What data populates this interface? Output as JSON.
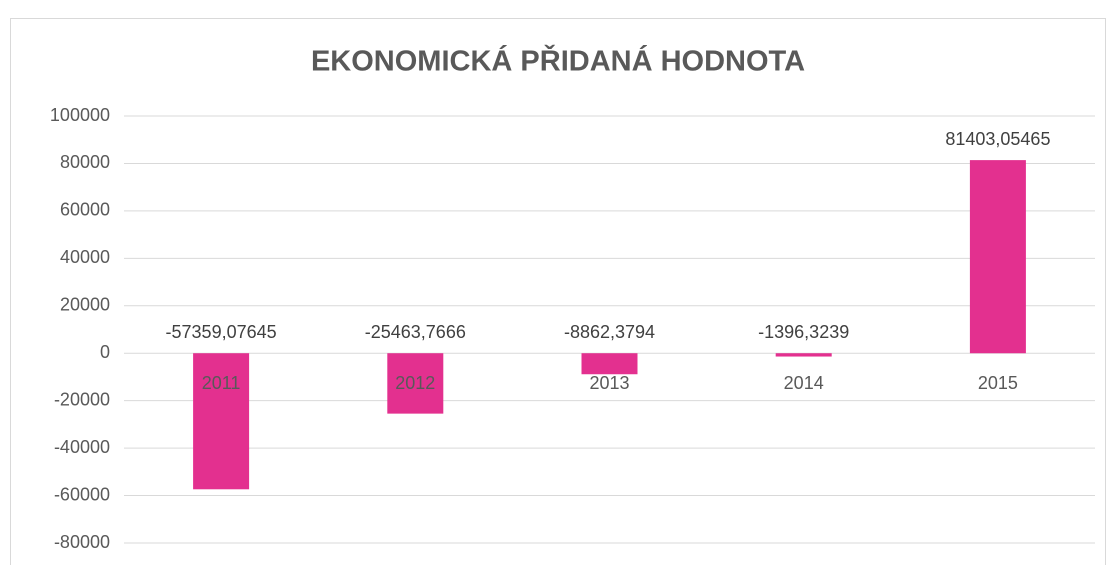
{
  "chart_data": {
    "type": "bar",
    "title": "EKONOMICKÁ PŘIDANÁ HODNOTA",
    "categories": [
      "2011",
      "2012",
      "2013",
      "2014",
      "2015"
    ],
    "values": [
      -57359.07645,
      -25463.7666,
      -8862.3794,
      -1396.3239,
      81403.05465
    ],
    "value_labels": [
      "-57359,07645",
      "-25463,7666",
      "-8862,3794",
      "-1396,3239",
      "81403,05465"
    ],
    "color": "#e3308f",
    "ylim": [
      -80000,
      100000
    ],
    "yticks": [
      -80000,
      -60000,
      -40000,
      -20000,
      0,
      20000,
      40000,
      60000,
      80000,
      100000
    ],
    "grid": true
  }
}
